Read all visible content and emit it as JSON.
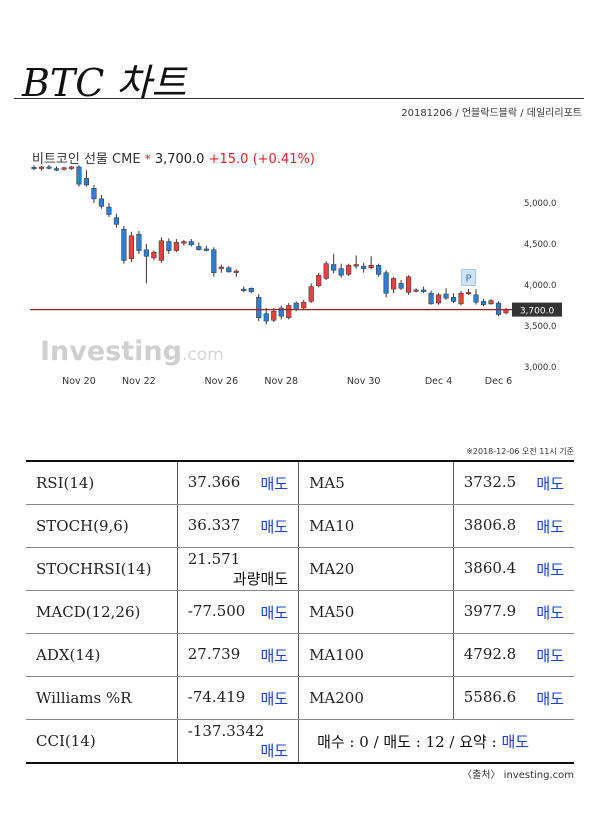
{
  "header": {
    "title": "BTC 차트",
    "byline": "20181206 / 언블락드블락 / 데일리리포트"
  },
  "chart_header": {
    "name": "비트코인 선물 CME",
    "star": "*",
    "last": "3,700.0",
    "change": "+15.0",
    "change_pct": "(+0.41%)"
  },
  "chart_data": {
    "type": "candlestick",
    "title": "비트코인 선물 CME",
    "x_ticks": [
      "Nov 20",
      "Nov 22",
      "Nov 26",
      "Nov 28",
      "Nov 30",
      "Dec 4",
      "Dec 6"
    ],
    "y_ticks": [
      "5,000.0",
      "4,500.0",
      "4,000.0",
      "3,500.0",
      "3,000.0"
    ],
    "ylim": [
      3000,
      5500
    ],
    "last_price_label": "3,700.0",
    "last_price": 3700,
    "marker_label": "P",
    "watermark": "Investing.com",
    "candles": [
      {
        "o": 5435,
        "h": 5460,
        "l": 5400,
        "c": 5420
      },
      {
        "o": 5420,
        "h": 5450,
        "l": 5395,
        "c": 5440
      },
      {
        "o": 5440,
        "h": 5465,
        "l": 5410,
        "c": 5425
      },
      {
        "o": 5420,
        "h": 5445,
        "l": 5390,
        "c": 5400
      },
      {
        "o": 5410,
        "h": 5440,
        "l": 5395,
        "c": 5430
      },
      {
        "o": 5420,
        "h": 5450,
        "l": 5405,
        "c": 5440
      },
      {
        "o": 5440,
        "h": 5460,
        "l": 5200,
        "c": 5230
      },
      {
        "o": 5300,
        "h": 5400,
        "l": 5200,
        "c": 5220
      },
      {
        "o": 5180,
        "h": 5220,
        "l": 5000,
        "c": 5050
      },
      {
        "o": 5050,
        "h": 5100,
        "l": 4930,
        "c": 4960
      },
      {
        "o": 4950,
        "h": 5000,
        "l": 4830,
        "c": 4860
      },
      {
        "o": 4820,
        "h": 4870,
        "l": 4700,
        "c": 4740
      },
      {
        "o": 4680,
        "h": 4720,
        "l": 4260,
        "c": 4300
      },
      {
        "o": 4320,
        "h": 4650,
        "l": 4280,
        "c": 4600
      },
      {
        "o": 4620,
        "h": 4660,
        "l": 4380,
        "c": 4420
      },
      {
        "o": 4430,
        "h": 4500,
        "l": 4020,
        "c": 4350
      },
      {
        "o": 4330,
        "h": 4420,
        "l": 4300,
        "c": 4400
      },
      {
        "o": 4300,
        "h": 4580,
        "l": 4270,
        "c": 4540
      },
      {
        "o": 4530,
        "h": 4570,
        "l": 4380,
        "c": 4420
      },
      {
        "o": 4420,
        "h": 4560,
        "l": 4400,
        "c": 4520
      },
      {
        "o": 4510,
        "h": 4550,
        "l": 4480,
        "c": 4530
      },
      {
        "o": 4530,
        "h": 4560,
        "l": 4470,
        "c": 4490
      },
      {
        "o": 4470,
        "h": 4520,
        "l": 4420,
        "c": 4430
      },
      {
        "o": 4440,
        "h": 4480,
        "l": 4410,
        "c": 4420
      },
      {
        "o": 4430,
        "h": 4460,
        "l": 4100,
        "c": 4150
      },
      {
        "o": 4200,
        "h": 4250,
        "l": 4150,
        "c": 4220
      },
      {
        "o": 4210,
        "h": 4230,
        "l": 4150,
        "c": 4160
      },
      {
        "o": 4170,
        "h": 4190,
        "l": 4100,
        "c": 4170
      },
      {
        "o": 3950,
        "h": 3980,
        "l": 3910,
        "c": 3930
      },
      {
        "o": 3960,
        "h": 3970,
        "l": 3900,
        "c": 3920
      },
      {
        "o": 3850,
        "h": 3890,
        "l": 3560,
        "c": 3600
      },
      {
        "o": 3650,
        "h": 3720,
        "l": 3520,
        "c": 3560
      },
      {
        "o": 3570,
        "h": 3720,
        "l": 3550,
        "c": 3680
      },
      {
        "o": 3720,
        "h": 3750,
        "l": 3580,
        "c": 3620
      },
      {
        "o": 3600,
        "h": 3780,
        "l": 3580,
        "c": 3750
      },
      {
        "o": 3780,
        "h": 3800,
        "l": 3680,
        "c": 3700
      },
      {
        "o": 3720,
        "h": 3820,
        "l": 3700,
        "c": 3790
      },
      {
        "o": 3800,
        "h": 4020,
        "l": 3780,
        "c": 3980
      },
      {
        "o": 3990,
        "h": 4150,
        "l": 3970,
        "c": 4120
      },
      {
        "o": 4080,
        "h": 4290,
        "l": 4060,
        "c": 4260
      },
      {
        "o": 4250,
        "h": 4380,
        "l": 4140,
        "c": 4180
      },
      {
        "o": 4200,
        "h": 4260,
        "l": 4090,
        "c": 4120
      },
      {
        "o": 4130,
        "h": 4260,
        "l": 4110,
        "c": 4240
      },
      {
        "o": 4230,
        "h": 4360,
        "l": 4200,
        "c": 4250
      },
      {
        "o": 4230,
        "h": 4270,
        "l": 4150,
        "c": 4200
      },
      {
        "o": 4210,
        "h": 4350,
        "l": 4190,
        "c": 4240
      },
      {
        "o": 4240,
        "h": 4260,
        "l": 4100,
        "c": 4130
      },
      {
        "o": 4150,
        "h": 4180,
        "l": 3850,
        "c": 3900
      },
      {
        "o": 3950,
        "h": 4100,
        "l": 3900,
        "c": 4080
      },
      {
        "o": 4020,
        "h": 4060,
        "l": 3940,
        "c": 3960
      },
      {
        "o": 3910,
        "h": 4120,
        "l": 3880,
        "c": 4100
      },
      {
        "o": 3930,
        "h": 3960,
        "l": 3910,
        "c": 3940
      },
      {
        "o": 3940,
        "h": 3980,
        "l": 3900,
        "c": 3920
      },
      {
        "o": 3900,
        "h": 3930,
        "l": 3760,
        "c": 3770
      },
      {
        "o": 3780,
        "h": 3900,
        "l": 3760,
        "c": 3880
      },
      {
        "o": 3890,
        "h": 3960,
        "l": 3820,
        "c": 3840
      },
      {
        "o": 3850,
        "h": 3900,
        "l": 3780,
        "c": 3800
      },
      {
        "o": 3770,
        "h": 3930,
        "l": 3750,
        "c": 3900
      },
      {
        "o": 3900,
        "h": 3950,
        "l": 3880,
        "c": 3910
      },
      {
        "o": 3880,
        "h": 3950,
        "l": 3760,
        "c": 3790
      },
      {
        "o": 3800,
        "h": 3830,
        "l": 3740,
        "c": 3760
      },
      {
        "o": 3770,
        "h": 3830,
        "l": 3760,
        "c": 3810
      },
      {
        "o": 3780,
        "h": 3800,
        "l": 3620,
        "c": 3640
      },
      {
        "o": 3660,
        "h": 3720,
        "l": 3640,
        "c": 3700
      }
    ],
    "colors": {
      "up": "#e84040",
      "down": "#2a7fd4",
      "last_line": "#a02020"
    }
  },
  "note": "※2018-12-06 오전 11시 기준",
  "indicators": {
    "rows": [
      {
        "name": "RSI(14)",
        "value": "37.366",
        "signal": "매도",
        "ma_name": "MA5",
        "ma_value": "3732.5",
        "ma_signal": "매도"
      },
      {
        "name": "STOCH(9,6)",
        "value": "36.337",
        "signal": "매도",
        "ma_name": "MA10",
        "ma_value": "3806.8",
        "ma_signal": "매도"
      },
      {
        "name": "STOCHRSI(14)",
        "value": "21.571",
        "signal": "과량매도",
        "ma_name": "MA20",
        "ma_value": "3860.4",
        "ma_signal": "매도"
      },
      {
        "name": "MACD(12,26)",
        "value": "-77.500",
        "signal": "매도",
        "ma_name": "MA50",
        "ma_value": "3977.9",
        "ma_signal": "매도"
      },
      {
        "name": "ADX(14)",
        "value": "27.739",
        "signal": "매도",
        "ma_name": "MA100",
        "ma_value": "4792.8",
        "ma_signal": "매도"
      },
      {
        "name": "Williams %R",
        "value": "-74.419",
        "signal": "매도",
        "ma_name": "MA200",
        "ma_value": "5586.6",
        "ma_signal": "매도"
      }
    ],
    "last": {
      "name": "CCI(14)",
      "value": "-137.3342",
      "signal": "매도",
      "summary_label": "매수 : 0 / 매도 : 12 / 요약 :",
      "summary_signal": "매도"
    }
  },
  "source": "〈출처〉 investing.com"
}
